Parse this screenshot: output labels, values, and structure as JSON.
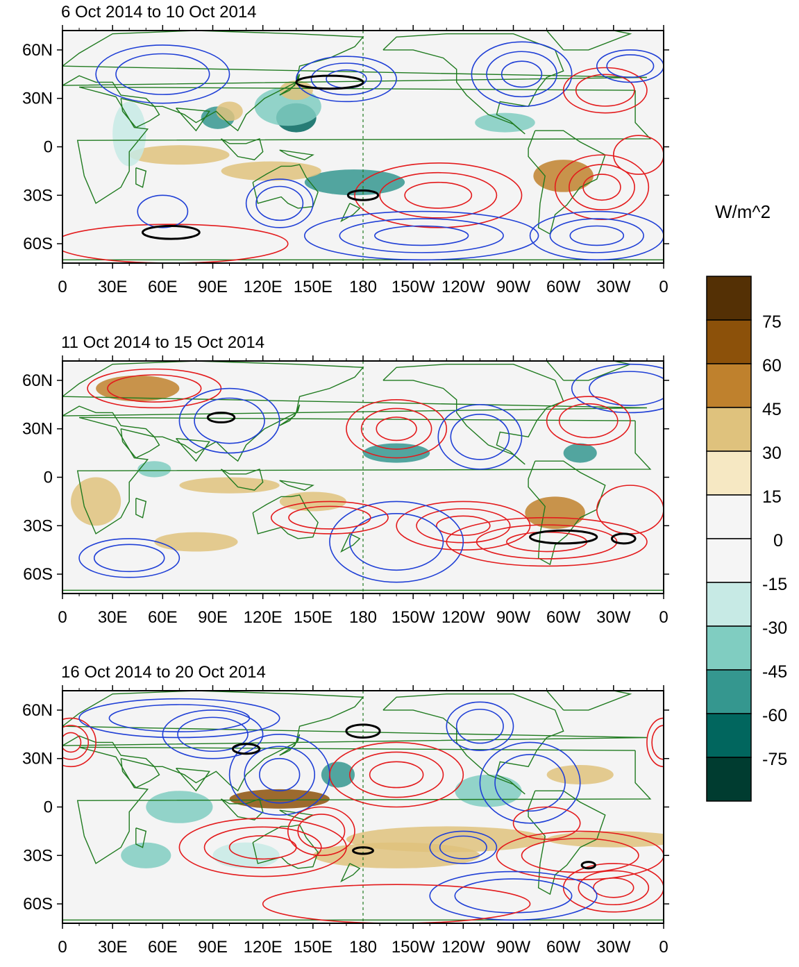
{
  "panels": [
    {
      "title": "6 Oct 2014 to 10 Oct 2014"
    },
    {
      "title": "11 Oct 2014 to 15 Oct 2014"
    },
    {
      "title": "16 Oct 2014 to 20 Oct 2014"
    }
  ],
  "lon_ticks": [
    "0",
    "30E",
    "60E",
    "90E",
    "120E",
    "150E",
    "180",
    "150W",
    "120W",
    "90W",
    "60W",
    "30W",
    "0"
  ],
  "lat_ticks": [
    "60N",
    "30N",
    "0",
    "30S",
    "60S"
  ],
  "colorbar": {
    "unit": "W/m^2",
    "labels": [
      "75",
      "60",
      "45",
      "30",
      "15",
      "0",
      "-15",
      "-30",
      "-45",
      "-60",
      "-75"
    ],
    "colors": [
      "#543005",
      "#8c510a",
      "#bf812d",
      "#dfc27d",
      "#f6e8c3",
      "#f5f5f5",
      "#f5f5f5",
      "#c7eae5",
      "#80cdc1",
      "#35978f",
      "#01665e",
      "#003c30"
    ]
  },
  "colors": {
    "positive_contour": "#e31a1c",
    "negative_contour": "#1f3fd6",
    "significance_contour": "#000000",
    "coastline": "#1f7a1f",
    "background": "#f4f4f4"
  }
}
